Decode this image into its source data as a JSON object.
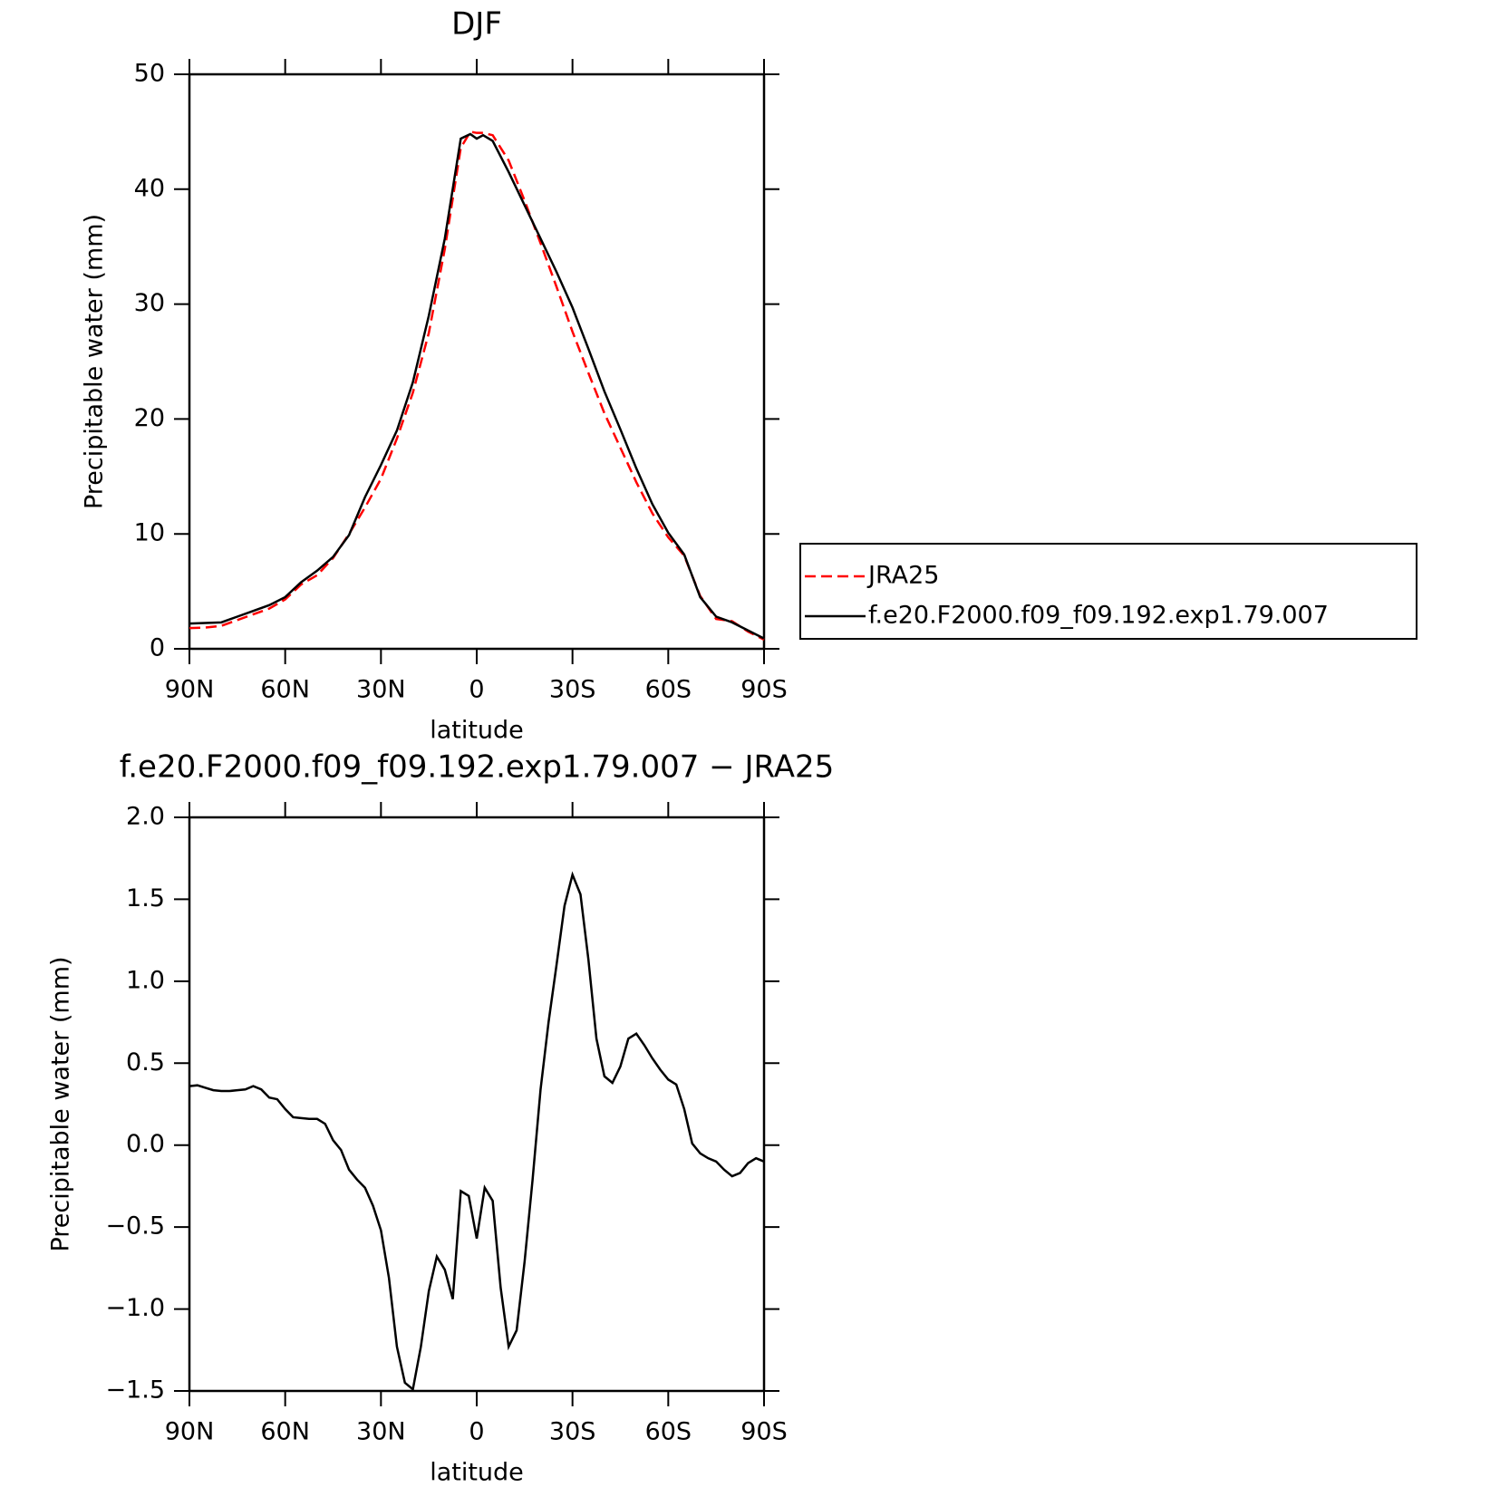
{
  "chart_data": [
    {
      "type": "line",
      "title": "DJF",
      "xlabel": "latitude",
      "ylabel": "Precipitable water (mm)",
      "x": [
        90,
        85,
        80,
        75,
        70,
        65,
        60,
        55,
        50,
        45,
        40,
        35,
        30,
        25,
        20,
        15,
        10,
        5,
        2,
        0,
        -2,
        -5,
        -10,
        -15,
        -20,
        -25,
        -30,
        -35,
        -40,
        -45,
        -50,
        -55,
        -60,
        -65,
        -70,
        -75,
        -80,
        -85,
        -90
      ],
      "series": [
        {
          "name": "JRA25",
          "color": "#ff0000",
          "style": "dashed",
          "values": [
            1.8,
            1.85,
            2.0,
            2.5,
            3.0,
            3.5,
            4.3,
            5.6,
            6.4,
            7.9,
            10.0,
            12.3,
            14.8,
            18.3,
            22.3,
            27.5,
            34.8,
            43.6,
            45.0,
            44.9,
            44.9,
            44.7,
            42.5,
            39.0,
            35.3,
            31.5,
            27.6,
            24.0,
            20.5,
            17.5,
            14.5,
            11.8,
            9.7,
            8.1,
            4.6,
            2.6,
            2.4,
            1.5,
            0.8
          ]
        },
        {
          "name": "f.e20.F2000.f09_f09.192.exp1.79.007",
          "color": "#000000",
          "style": "solid",
          "values": [
            2.2,
            2.25,
            2.3,
            2.8,
            3.3,
            3.8,
            4.5,
            5.8,
            6.8,
            8.0,
            9.9,
            13.2,
            16.0,
            19.0,
            23.2,
            29.0,
            35.7,
            44.4,
            44.8,
            44.4,
            44.7,
            44.2,
            41.5,
            38.6,
            35.7,
            32.8,
            29.7,
            26.1,
            22.4,
            19.1,
            15.7,
            12.6,
            10.1,
            8.2,
            4.5,
            2.8,
            2.3,
            1.6,
            0.9
          ]
        }
      ],
      "xlim": [
        90,
        -90
      ],
      "xticks": [
        {
          "value": 90,
          "label": "90N"
        },
        {
          "value": 60,
          "label": "60N"
        },
        {
          "value": 30,
          "label": "30N"
        },
        0,
        {
          "value": -30,
          "label": "30S"
        },
        {
          "value": -60,
          "label": "60S"
        },
        {
          "value": -90,
          "label": "90S"
        }
      ],
      "ylim": [
        0,
        50
      ],
      "yticks": [
        0,
        10,
        20,
        30,
        40,
        50
      ]
    },
    {
      "type": "line",
      "title": "f.e20.F2000.f09_f09.192.exp1.79.007 − JRA25",
      "xlabel": "latitude",
      "ylabel": "Precipitable water (mm)",
      "x": [
        90,
        87.5,
        85,
        82.5,
        80,
        77.5,
        75,
        72.5,
        70,
        67.5,
        65,
        62.5,
        60,
        57.5,
        55,
        52.5,
        50,
        47.5,
        45,
        42.5,
        40,
        37.5,
        35,
        32.5,
        30,
        27.5,
        25,
        22.5,
        20,
        17.5,
        15,
        12.5,
        10,
        7.5,
        5,
        2.5,
        0,
        -2.5,
        -5,
        -7.5,
        -10,
        -12.5,
        -15,
        -17.5,
        -20,
        -22.5,
        -25,
        -27.5,
        -30,
        -32.5,
        -35,
        -37.5,
        -40,
        -42.5,
        -45,
        -47.5,
        -50,
        -52.5,
        -55,
        -57.5,
        -60,
        -62.5,
        -65,
        -67.5,
        -70,
        -72.5,
        -75,
        -77.5,
        -80,
        -82.5,
        -85,
        -87.5,
        -90
      ],
      "color": "#000000",
      "values": [
        0.36,
        0.365,
        0.35,
        0.335,
        0.33,
        0.33,
        0.335,
        0.34,
        0.36,
        0.34,
        0.29,
        0.28,
        0.22,
        0.17,
        0.165,
        0.16,
        0.16,
        0.13,
        0.03,
        -0.03,
        -0.15,
        -0.21,
        -0.26,
        -0.37,
        -0.52,
        -0.81,
        -1.23,
        -1.45,
        -1.49,
        -1.23,
        -0.89,
        -0.68,
        -0.76,
        -0.94,
        -0.28,
        -0.31,
        -0.57,
        -0.26,
        -0.34,
        -0.87,
        -1.23,
        -1.13,
        -0.71,
        -0.21,
        0.34,
        0.75,
        1.1,
        1.46,
        1.65,
        1.53,
        1.13,
        0.65,
        0.42,
        0.38,
        0.48,
        0.65,
        0.68,
        0.61,
        0.53,
        0.46,
        0.4,
        0.37,
        0.22,
        0.01,
        -0.05,
        -0.08,
        -0.1,
        -0.15,
        -0.19,
        -0.17,
        -0.11,
        -0.08,
        -0.1
      ],
      "xlim": [
        90,
        -90
      ],
      "xticks": [
        {
          "value": 90,
          "label": "90N"
        },
        {
          "value": 60,
          "label": "60N"
        },
        {
          "value": 30,
          "label": "30N"
        },
        0,
        {
          "value": -30,
          "label": "30S"
        },
        {
          "value": -60,
          "label": "60S"
        },
        {
          "value": -90,
          "label": "90S"
        }
      ],
      "ylim": [
        -1.5,
        2.0
      ],
      "yticks": [
        {
          "value": -1.5,
          "label": "−1.5"
        },
        {
          "value": -1.0,
          "label": "−1.0"
        },
        {
          "value": -0.5,
          "label": "−0.5"
        },
        {
          "value": 0,
          "label": "0.0"
        },
        0.5,
        {
          "value": 1.0,
          "label": "1.0"
        },
        1.5,
        {
          "value": 2.0,
          "label": "2.0"
        }
      ]
    }
  ]
}
